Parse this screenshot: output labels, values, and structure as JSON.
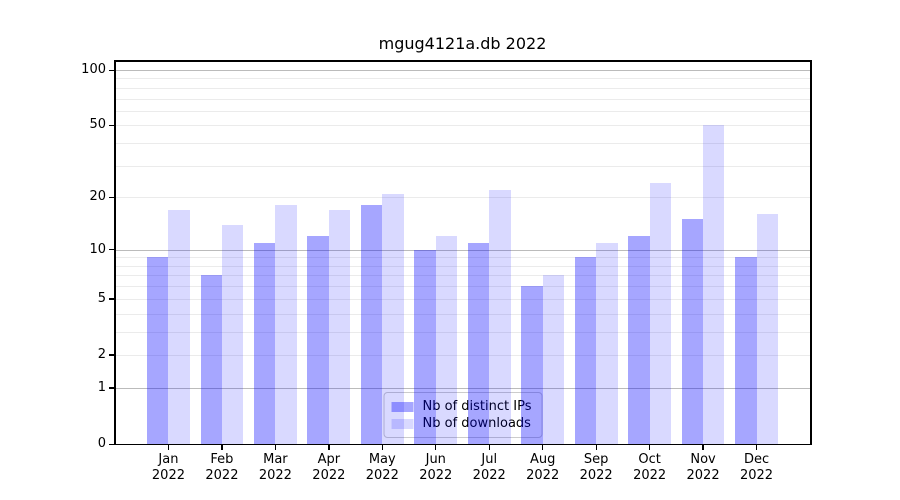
{
  "title": "mgug4121a.db 2022",
  "colors": {
    "series_ips": "rgba(0,0,255,0.35)",
    "series_downloads": "rgba(0,0,255,0.15)",
    "series_ips_hex": "#a6a6ff",
    "series_downloads_hex": "#d9d9ff",
    "grid_major": "#bbbbbb",
    "grid_minor": "#ebebeb",
    "spine": "#000000",
    "legend_border": "#cccccc"
  },
  "legend": {
    "items": [
      {
        "label": "Nb of distinct IPs",
        "color": "rgba(0,0,255,0.35)"
      },
      {
        "label": "Nb of downloads",
        "color": "rgba(0,0,255,0.15)"
      }
    ]
  },
  "y_axis": {
    "tick_labels": [
      "0",
      "1",
      "2",
      "5",
      "10",
      "20",
      "50",
      "100"
    ]
  },
  "x_axis": {
    "months": [
      "Jan",
      "Feb",
      "Mar",
      "Apr",
      "May",
      "Jun",
      "Jul",
      "Aug",
      "Sep",
      "Oct",
      "Nov",
      "Dec"
    ],
    "year": "2022"
  },
  "chart_data": {
    "type": "bar",
    "title": "mgug4121a.db 2022",
    "categories": [
      "Jan 2022",
      "Feb 2022",
      "Mar 2022",
      "Apr 2022",
      "May 2022",
      "Jun 2022",
      "Jul 2022",
      "Aug 2022",
      "Sep 2022",
      "Oct 2022",
      "Nov 2022",
      "Dec 2022"
    ],
    "series": [
      {
        "name": "Nb of distinct IPs",
        "values": [
          9,
          7,
          11,
          12,
          18,
          10,
          11,
          6,
          9,
          12,
          15,
          9
        ]
      },
      {
        "name": "Nb of downloads",
        "values": [
          17,
          14,
          18,
          17,
          21,
          12,
          22,
          7,
          11,
          24,
          50,
          16
        ]
      }
    ],
    "xlabel": "",
    "ylabel": "",
    "yscale": "log(value+1)",
    "ylim": [
      0,
      112
    ],
    "yticks": [
      0,
      1,
      2,
      5,
      10,
      20,
      50,
      100
    ],
    "major_gridlines": [
      1,
      10,
      100
    ],
    "minor_gridlines": [
      2,
      3,
      4,
      5,
      6,
      7,
      8,
      9,
      20,
      30,
      40,
      50,
      60,
      70,
      80,
      90
    ],
    "grid": "on",
    "legend_position": "lower center"
  }
}
